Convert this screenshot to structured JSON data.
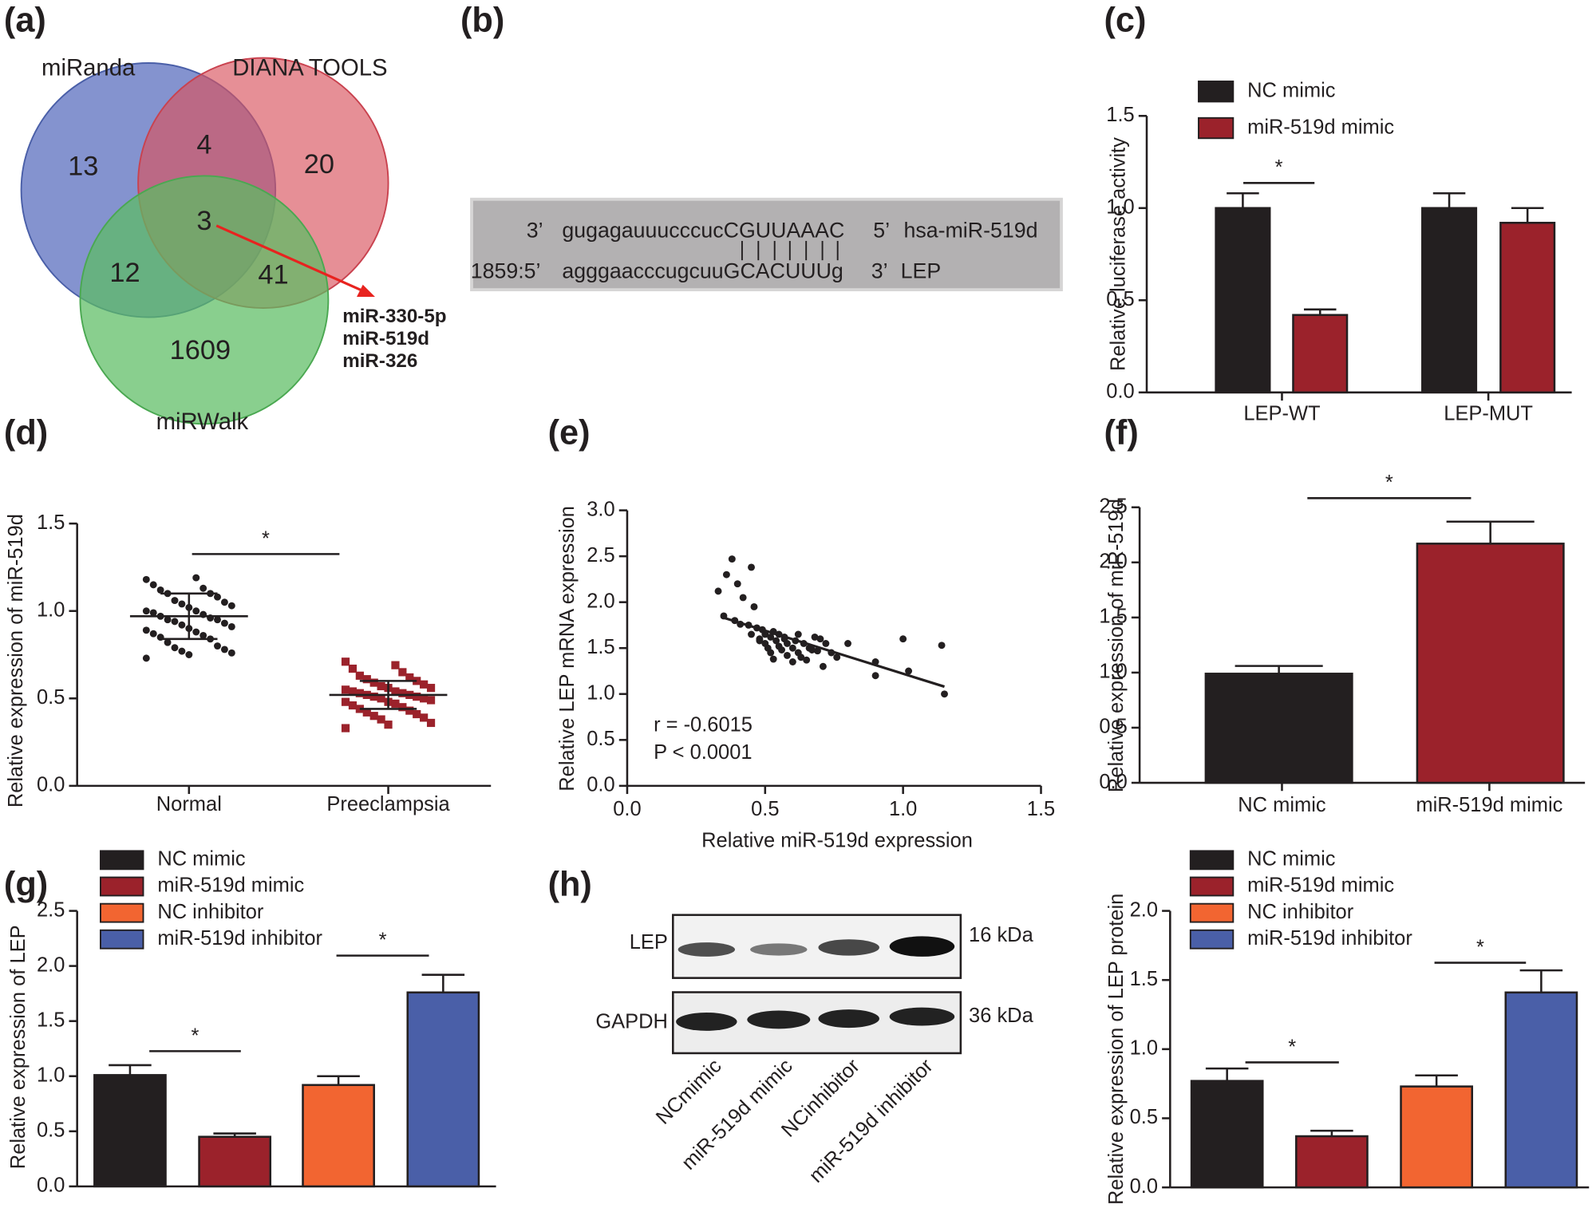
{
  "panel_labels": [
    "(a)",
    "(b)",
    "(c)",
    "(d)",
    "(e)",
    "(f)",
    "(g)",
    "(h)"
  ],
  "venn": {
    "labels": [
      "miRanda",
      "DIANA TOOLS",
      "miRWalk"
    ],
    "counts": [
      13,
      4,
      20,
      3,
      12,
      41,
      1609
    ],
    "shared": [
      "miR-330-5p",
      "miR-519d",
      "miR-326"
    ]
  },
  "sequence": {
    "rows": [
      [
        "3’",
        "gugagauuucccucCGUUAAAC",
        "5’",
        "hsa-miR-519d"
      ],
      [
        "1859:5’",
        "agggaacccugcuuGCACUUUg",
        "3’",
        "LEP"
      ]
    ]
  },
  "blot": {
    "rows": [
      "LEP",
      "GAPDH"
    ],
    "sizes": [
      "16 kDa",
      "36 kDa"
    ],
    "lanes": [
      "NCmimic",
      "miR-519d mimic",
      "NCinhibitor",
      "miR-519d inhibitor"
    ]
  },
  "chart_data": [
    {
      "type": "bar",
      "ylabel": "Relative luciferase activity",
      "categories": [
        "LEP-WT",
        "LEP-MUT"
      ],
      "series": [
        {
          "name": "NC mimic",
          "color": "#231f20",
          "values": [
            1.0,
            1.0
          ],
          "errors": [
            0.08,
            0.08
          ]
        },
        {
          "name": "miR-519d mimic",
          "color": "#9b222b",
          "values": [
            0.42,
            0.92
          ],
          "errors": [
            0.03,
            0.08
          ]
        }
      ],
      "ylim": [
        0,
        1.5
      ],
      "yticks": [
        {
          "value": 0,
          "label": "0.0"
        },
        0.5,
        {
          "value": 1,
          "label": "1.0"
        },
        1.5
      ],
      "annotations": [
        "*"
      ]
    },
    {
      "type": "dotplot",
      "ylabel": "Relative expression of miR-519d",
      "categories": [
        "Normal",
        "Preeclampsia"
      ],
      "colors": [
        "#231f20",
        "#9b222b"
      ],
      "markers": [
        "circle",
        "square"
      ],
      "values": [
        [
          1.18,
          1.19,
          1.15,
          1.13,
          1.12,
          1.1,
          1.1,
          1.08,
          1.06,
          1.05,
          1.04,
          1.03,
          1.02,
          1.0,
          1.0,
          0.99,
          0.98,
          0.97,
          0.96,
          0.95,
          0.95,
          0.94,
          0.93,
          0.92,
          0.91,
          0.9,
          0.89,
          0.88,
          0.87,
          0.86,
          0.85,
          0.84,
          0.82,
          0.8,
          0.79,
          0.78,
          0.77,
          0.76,
          0.75,
          0.73
        ],
        [
          0.71,
          0.69,
          0.67,
          0.65,
          0.63,
          0.62,
          0.61,
          0.6,
          0.59,
          0.58,
          0.57,
          0.56,
          0.56,
          0.55,
          0.54,
          0.54,
          0.53,
          0.53,
          0.52,
          0.52,
          0.51,
          0.51,
          0.5,
          0.5,
          0.49,
          0.48,
          0.48,
          0.47,
          0.46,
          0.45,
          0.44,
          0.43,
          0.42,
          0.41,
          0.4,
          0.39,
          0.38,
          0.36,
          0.35,
          0.33
        ]
      ],
      "means": [
        0.97,
        0.52
      ],
      "sds": [
        0.13,
        0.08
      ],
      "ylim": [
        0,
        1.5
      ],
      "yticks": [
        {
          "value": 0,
          "label": "0.0"
        },
        0.5,
        {
          "value": 1,
          "label": "1.0"
        },
        1.5
      ],
      "annotations": [
        "*"
      ]
    },
    {
      "type": "scatter",
      "xlabel": "Relative miR-519d expression",
      "ylabel": "Relative LEP mRNA expression",
      "x": [
        0.33,
        0.36,
        0.38,
        0.4,
        0.42,
        0.45,
        0.46,
        0.35,
        0.39,
        0.41,
        0.44,
        0.47,
        0.48,
        0.5,
        0.5,
        0.51,
        0.52,
        0.52,
        0.53,
        0.54,
        0.55,
        0.55,
        0.56,
        0.57,
        0.58,
        0.58,
        0.6,
        0.6,
        0.61,
        0.62,
        0.63,
        0.64,
        0.65,
        0.66,
        0.68,
        0.69,
        0.7,
        0.71,
        0.72,
        0.74,
        0.76,
        0.8,
        0.9,
        0.9,
        1.0,
        1.02,
        1.14,
        1.15,
        0.49,
        0.53,
        0.57,
        0.62,
        0.67,
        0.45,
        0.48
      ],
      "y": [
        2.12,
        2.3,
        2.47,
        2.2,
        2.05,
        2.38,
        1.95,
        1.85,
        1.8,
        1.76,
        1.75,
        1.72,
        1.6,
        1.55,
        1.65,
        1.5,
        1.45,
        1.62,
        1.38,
        1.58,
        1.52,
        1.65,
        1.48,
        1.6,
        1.42,
        1.55,
        1.35,
        1.5,
        1.58,
        1.45,
        1.4,
        1.55,
        1.37,
        1.5,
        1.62,
        1.47,
        1.6,
        1.3,
        1.55,
        1.45,
        1.4,
        1.55,
        1.35,
        1.2,
        1.6,
        1.25,
        1.53,
        1.0,
        1.7,
        1.68,
        1.62,
        1.65,
        1.48,
        1.65,
        1.58
      ],
      "fit": {
        "x": [
          0.34,
          1.15
        ],
        "y": [
          1.84,
          1.08
        ]
      },
      "xlim": [
        0,
        1.5
      ],
      "xticks": [
        {
          "value": 0,
          "label": "0.0"
        },
        0.5,
        {
          "value": 1,
          "label": "1.0"
        },
        1.5
      ],
      "ylim": [
        0,
        3
      ],
      "yticks": [
        {
          "value": 0,
          "label": "0.0"
        },
        0.5,
        {
          "value": 1,
          "label": "1.0"
        },
        1.5,
        {
          "value": 2,
          "label": "2.0"
        },
        2.5,
        {
          "value": 3,
          "label": "3.0"
        }
      ],
      "annotations": [
        "r = -0.6015",
        "P < 0.0001"
      ]
    },
    {
      "type": "bar",
      "ylabel": "Relative expression of miR-519d",
      "categories": [
        "NC mimic",
        "miR-519d mimic"
      ],
      "values": [
        0.99,
        2.17
      ],
      "errors": [
        0.07,
        0.2
      ],
      "colors": [
        "#231f20",
        "#9b222b"
      ],
      "ylim": [
        0,
        2.5
      ],
      "yticks": [
        {
          "value": 0,
          "label": "0.0"
        },
        0.5,
        {
          "value": 1,
          "label": "1.0"
        },
        1.5,
        {
          "value": 2,
          "label": "2.0"
        },
        2.5
      ],
      "annotations": [
        "*"
      ]
    },
    {
      "type": "bar",
      "ylabel": "Relative expression of LEP",
      "series": [
        {
          "name": "NC mimic",
          "color": "#231f20",
          "values": [
            1.01
          ],
          "errors": [
            0.09
          ]
        },
        {
          "name": "miR-519d mimic",
          "color": "#9b222b",
          "values": [
            0.45
          ],
          "errors": [
            0.03
          ]
        },
        {
          "name": "NC inhibitor",
          "color": "#f26531",
          "values": [
            0.92
          ],
          "errors": [
            0.08
          ]
        },
        {
          "name": "miR-519d inhibitor",
          "color": "#4a5fa8",
          "values": [
            1.76
          ],
          "errors": [
            0.16
          ]
        }
      ],
      "ylim": [
        0,
        2.5
      ],
      "yticks": [
        {
          "value": 0,
          "label": "0.0"
        },
        0.5,
        {
          "value": 1,
          "label": "1.0"
        },
        1.5,
        {
          "value": 2,
          "label": "2.0"
        },
        2.5
      ],
      "annotations": [
        "*",
        "*"
      ]
    },
    {
      "type": "bar",
      "ylabel": "Relative expression of LEP protein",
      "series": [
        {
          "name": "NC mimic",
          "color": "#231f20",
          "values": [
            0.77
          ],
          "errors": [
            0.09
          ]
        },
        {
          "name": "miR-519d mimic",
          "color": "#9b222b",
          "values": [
            0.37
          ],
          "errors": [
            0.04
          ]
        },
        {
          "name": "NC inhibitor",
          "color": "#f26531",
          "values": [
            0.73
          ],
          "errors": [
            0.08
          ]
        },
        {
          "name": "miR-519d inhibitor",
          "color": "#4a5fa8",
          "values": [
            1.41
          ],
          "errors": [
            0.16
          ]
        }
      ],
      "ylim": [
        0,
        2
      ],
      "yticks": [
        {
          "value": 0,
          "label": "0.0"
        },
        0.5,
        {
          "value": 1,
          "label": "1.0"
        },
        1.5,
        {
          "value": 2,
          "label": "2.0"
        }
      ],
      "annotations": [
        "*",
        "*"
      ]
    }
  ]
}
